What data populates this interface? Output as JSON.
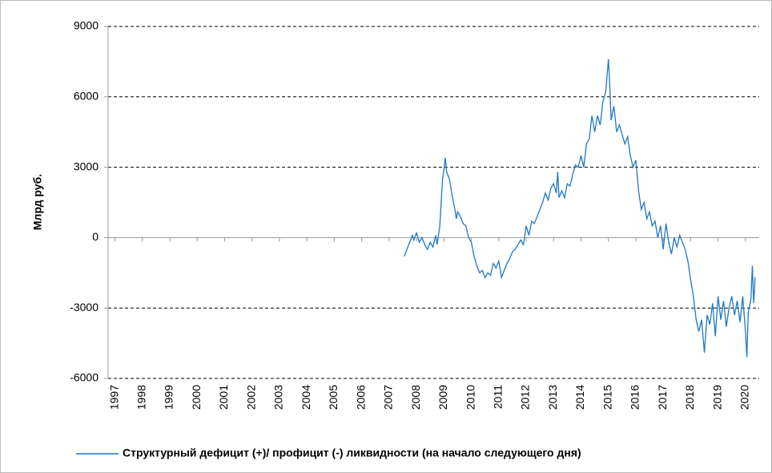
{
  "chart_data": {
    "type": "line",
    "y_label": "Млрд руб.",
    "xlim": [
      1996.75,
      2020.5
    ],
    "xticks": [
      1997,
      1998,
      1999,
      2000,
      2001,
      2002,
      2003,
      2004,
      2005,
      2006,
      2007,
      2008,
      2009,
      2010,
      2011,
      2012,
      2013,
      2014,
      2015,
      2016,
      2017,
      2018,
      2019,
      2020
    ],
    "ylim": [
      -6000,
      9000
    ],
    "yticks": [
      -6000,
      -3000,
      0,
      3000,
      6000,
      9000
    ],
    "grid": true,
    "legend": "bottom",
    "x": [
      2007.55,
      2007.65,
      2007.75,
      2007.85,
      2007.9,
      2008.0,
      2008.1,
      2008.2,
      2008.3,
      2008.4,
      2008.5,
      2008.6,
      2008.7,
      2008.75,
      2008.85,
      2008.9,
      2008.95,
      2009.0,
      2009.05,
      2009.1,
      2009.2,
      2009.3,
      2009.4,
      2009.45,
      2009.5,
      2009.6,
      2009.7,
      2009.8,
      2009.9,
      2010.0,
      2010.1,
      2010.2,
      2010.3,
      2010.4,
      2010.5,
      2010.6,
      2010.7,
      2010.8,
      2010.9,
      2011.0,
      2011.1,
      2011.2,
      2011.3,
      2011.4,
      2011.5,
      2011.6,
      2011.7,
      2011.8,
      2011.9,
      2012.0,
      2012.1,
      2012.2,
      2012.3,
      2012.4,
      2012.5,
      2012.6,
      2012.7,
      2012.8,
      2012.9,
      2013.0,
      2013.1,
      2013.15,
      2013.2,
      2013.3,
      2013.4,
      2013.5,
      2013.6,
      2013.7,
      2013.8,
      2013.9,
      2014.0,
      2014.1,
      2014.2,
      2014.3,
      2014.4,
      2014.5,
      2014.6,
      2014.7,
      2014.8,
      2014.9,
      2015.0,
      2015.05,
      2015.1,
      2015.2,
      2015.3,
      2015.4,
      2015.5,
      2015.6,
      2015.7,
      2015.8,
      2015.9,
      2016.0,
      2016.1,
      2016.2,
      2016.3,
      2016.4,
      2016.5,
      2016.6,
      2016.7,
      2016.8,
      2016.9,
      2017.0,
      2017.1,
      2017.2,
      2017.3,
      2017.4,
      2017.5,
      2017.6,
      2017.7,
      2017.8,
      2017.9,
      2018.0,
      2018.1,
      2018.2,
      2018.3,
      2018.4,
      2018.5,
      2018.6,
      2018.7,
      2018.8,
      2018.9,
      2019.0,
      2019.1,
      2019.2,
      2019.3,
      2019.4,
      2019.5,
      2019.6,
      2019.7,
      2019.8,
      2019.9,
      2020.0,
      2020.05,
      2020.1,
      2020.2,
      2020.25,
      2020.3,
      2020.35
    ],
    "series": [
      {
        "name": "Структурный  дефицит (+)/ профицит (-) ликвидности  (на начало  следующего дня)",
        "color": "#1f77c4",
        "values": [
          -800,
          -500,
          -200,
          100,
          -100,
          200,
          -200,
          0,
          -300,
          -500,
          -200,
          -400,
          100,
          -300,
          500,
          1500,
          2500,
          2900,
          3400,
          2800,
          2500,
          1800,
          1200,
          800,
          1100,
          900,
          600,
          500,
          0,
          -200,
          -800,
          -1200,
          -1500,
          -1400,
          -1700,
          -1500,
          -1600,
          -1100,
          -1300,
          -1000,
          -1700,
          -1400,
          -1100,
          -900,
          -600,
          -500,
          -300,
          -100,
          -300,
          500,
          100,
          700,
          600,
          900,
          1200,
          1500,
          1900,
          1600,
          2100,
          2300,
          1900,
          2800,
          1700,
          2000,
          1700,
          2300,
          2200,
          2700,
          3100,
          3000,
          3500,
          3000,
          4000,
          4200,
          5200,
          4500,
          5200,
          4800,
          5800,
          6200,
          7600,
          6500,
          5000,
          5600,
          4500,
          4800,
          4400,
          4000,
          4300,
          3500,
          3000,
          3300,
          2000,
          1200,
          1500,
          800,
          1100,
          500,
          700,
          0,
          500,
          -500,
          600,
          -200,
          -700,
          0,
          -400,
          100,
          -200,
          -500,
          -1000,
          -1800,
          -2500,
          -3500,
          -4000,
          -3500,
          -4900,
          -3300,
          -3700,
          -2800,
          -4200,
          -2500,
          -3500,
          -2700,
          -3800,
          -3000,
          -2500,
          -3300,
          -2700,
          -3600,
          -2500,
          -4000,
          -5100,
          -3200,
          -2600,
          -1200,
          -2800,
          -1700
        ]
      }
    ]
  }
}
